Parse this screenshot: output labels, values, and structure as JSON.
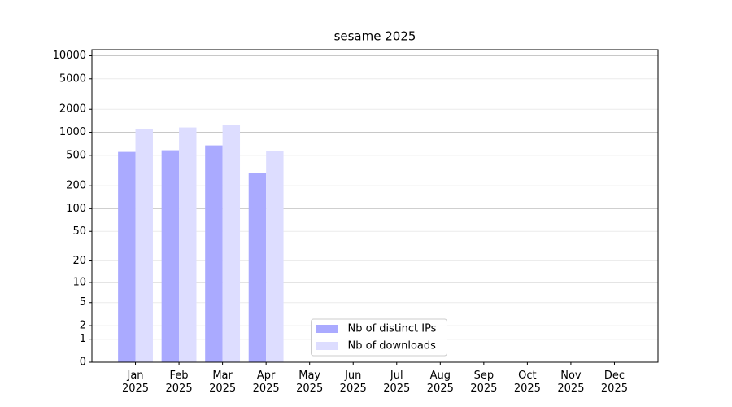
{
  "chart_data": {
    "type": "bar",
    "title": "sesame 2025",
    "categories": [
      "Jan\n2025",
      "Feb\n2025",
      "Mar\n2025",
      "Apr\n2025",
      "May\n2025",
      "Jun\n2025",
      "Jul\n2025",
      "Aug\n2025",
      "Sep\n2025",
      "Oct\n2025",
      "Nov\n2025",
      "Dec\n2025"
    ],
    "series": [
      {
        "name": "Nb of distinct IPs",
        "color": "#aaaaff",
        "values": [
          555,
          583,
          675,
          293,
          null,
          null,
          null,
          null,
          null,
          null,
          null,
          null
        ]
      },
      {
        "name": "Nb of downloads",
        "color": "#ddddff",
        "values": [
          1103,
          1158,
          1246,
          568,
          null,
          null,
          null,
          null,
          null,
          null,
          null,
          null
        ]
      }
    ],
    "yscale": "symlog",
    "ylim": [
      0,
      12000
    ],
    "yticks": [
      0,
      1,
      2,
      5,
      10,
      20,
      50,
      100,
      200,
      500,
      1000,
      2000,
      5000,
      10000
    ],
    "grid": true,
    "legend": "lower center"
  }
}
